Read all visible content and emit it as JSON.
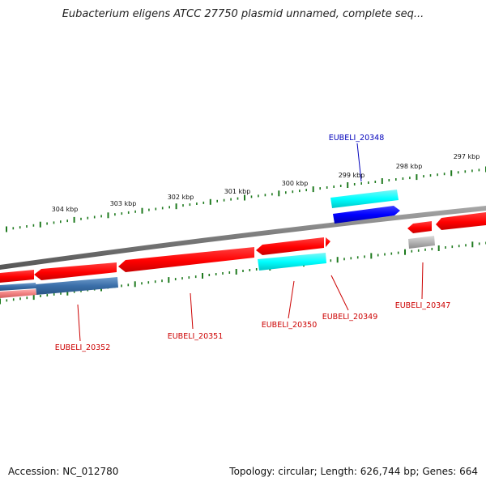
{
  "title": "Eubacterium eligens ATCC 27750 plasmid unnamed, complete seq...",
  "footer": {
    "accession": "Accession: NC_012780",
    "summary": "Topology: circular; Length: 626,744 bp; Genes: 664"
  },
  "colors": {
    "backbone": "#7a7a7a",
    "tick": "#1e7a1e",
    "tick_label": "#111111",
    "label_red": "#cc0000",
    "label_blue": "#0000bb",
    "cds_red": "#ff0000",
    "cds_cyan": "#00ffff",
    "cds_blue": "#0000ff",
    "cds_steelblue": "#3a6ea8",
    "cds_gray": "#b4b4b4",
    "cds_pink": "#f08080"
  },
  "scale": {
    "unit": "kbp",
    "labels": [
      "304 kbp",
      "303 kbp",
      "302 kbp",
      "301 kbp",
      "300 kbp",
      "299 kbp",
      "298 kbp",
      "297 kbp"
    ]
  },
  "genes": [
    {
      "label": "EUBELI_20352",
      "color_key": "label_red"
    },
    {
      "label": "EUBELI_20351",
      "color_key": "label_red"
    },
    {
      "label": "EUBELI_20350",
      "color_key": "label_red"
    },
    {
      "label": "EUBELI_20349",
      "color_key": "label_red"
    },
    {
      "label": "EUBELI_20348",
      "color_key": "label_blue"
    },
    {
      "label": "EUBELI_20347",
      "color_key": "label_red"
    }
  ]
}
